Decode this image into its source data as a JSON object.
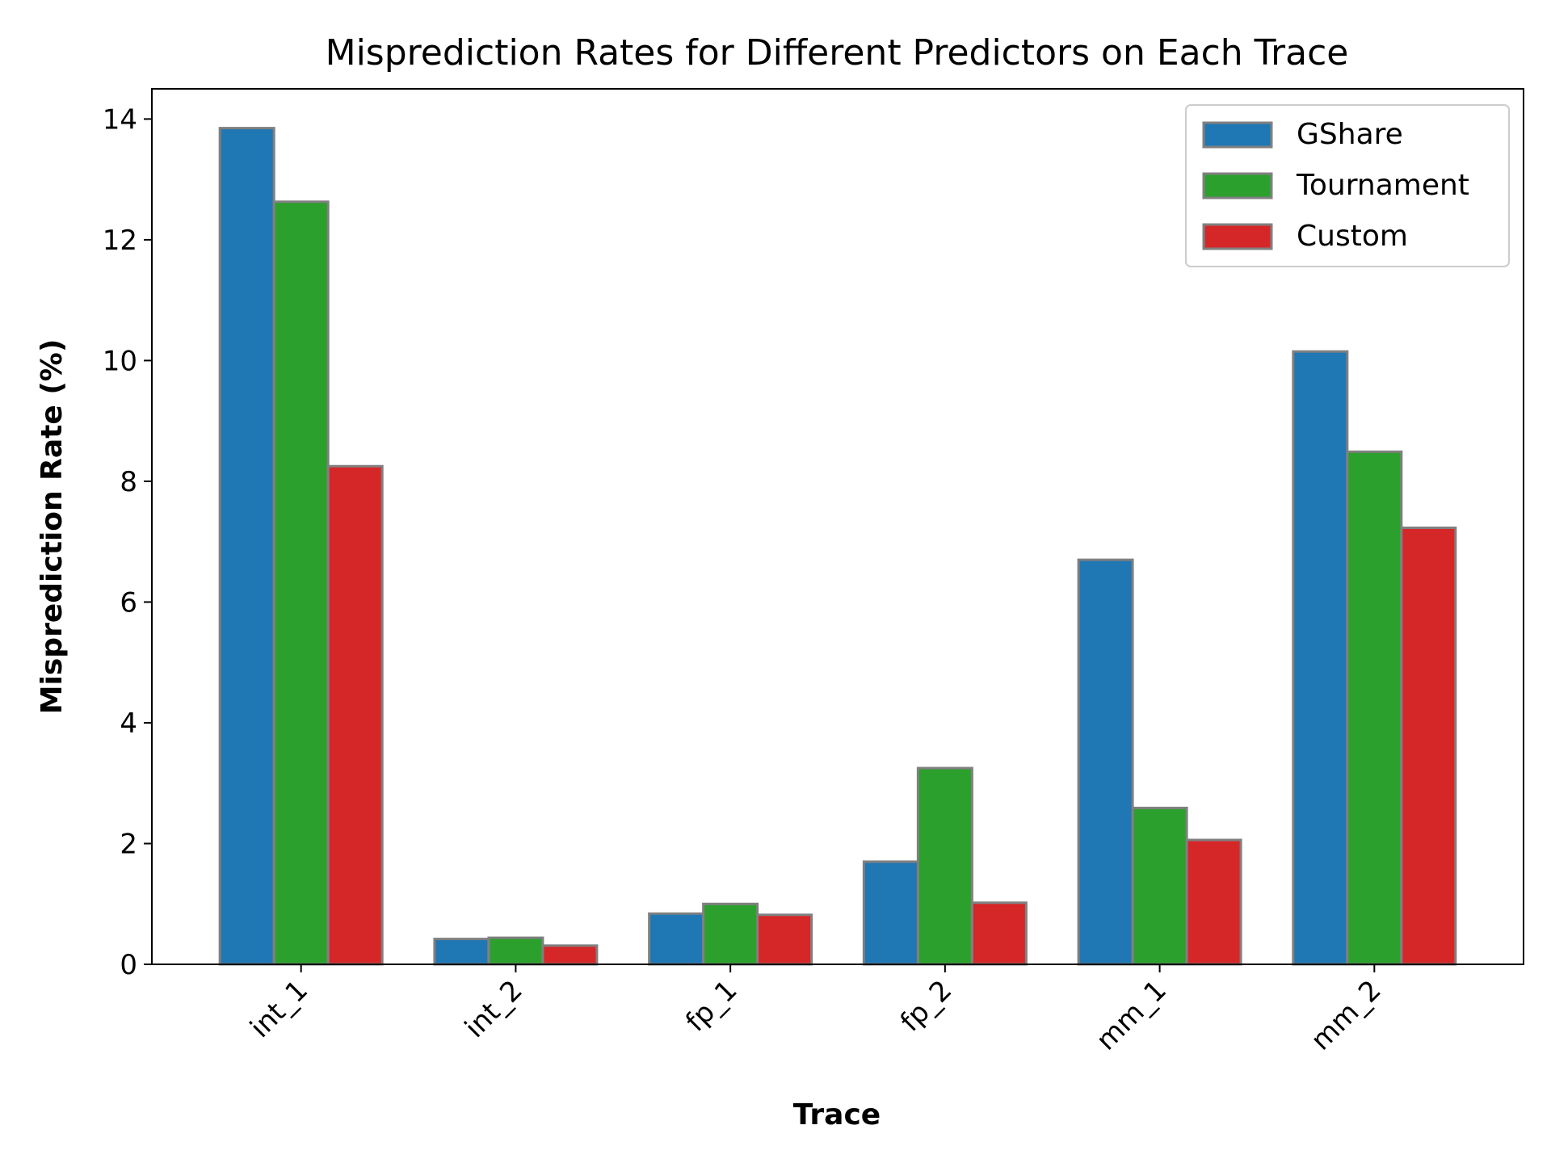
{
  "chart_data": {
    "type": "bar",
    "title": "Misprediction Rates for Different Predictors on Each Trace",
    "xlabel": "Trace",
    "ylabel": "Misprediction Rate (%)",
    "categories": [
      "int_1",
      "int_2",
      "fp_1",
      "fp_2",
      "mm_1",
      "mm_2"
    ],
    "ylim": [
      0,
      14.5
    ],
    "yticks": [
      0,
      2,
      4,
      6,
      8,
      10,
      12,
      14
    ],
    "ytick_labels": [
      "0",
      "2",
      "4",
      "6",
      "8",
      "10",
      "12",
      "14"
    ],
    "grid": false,
    "legend_position": "top-right",
    "bar_edge_color": "#808080",
    "series": [
      {
        "name": "GShare",
        "color": "#1f77b4",
        "values": [
          13.85,
          0.42,
          0.84,
          1.7,
          6.7,
          10.15
        ]
      },
      {
        "name": "Tournament",
        "color": "#2ca02c",
        "values": [
          12.63,
          0.44,
          1.0,
          3.25,
          2.59,
          8.49
        ]
      },
      {
        "name": "Custom",
        "color": "#d62728",
        "values": [
          8.25,
          0.31,
          0.82,
          1.02,
          2.06,
          7.23
        ]
      }
    ]
  }
}
